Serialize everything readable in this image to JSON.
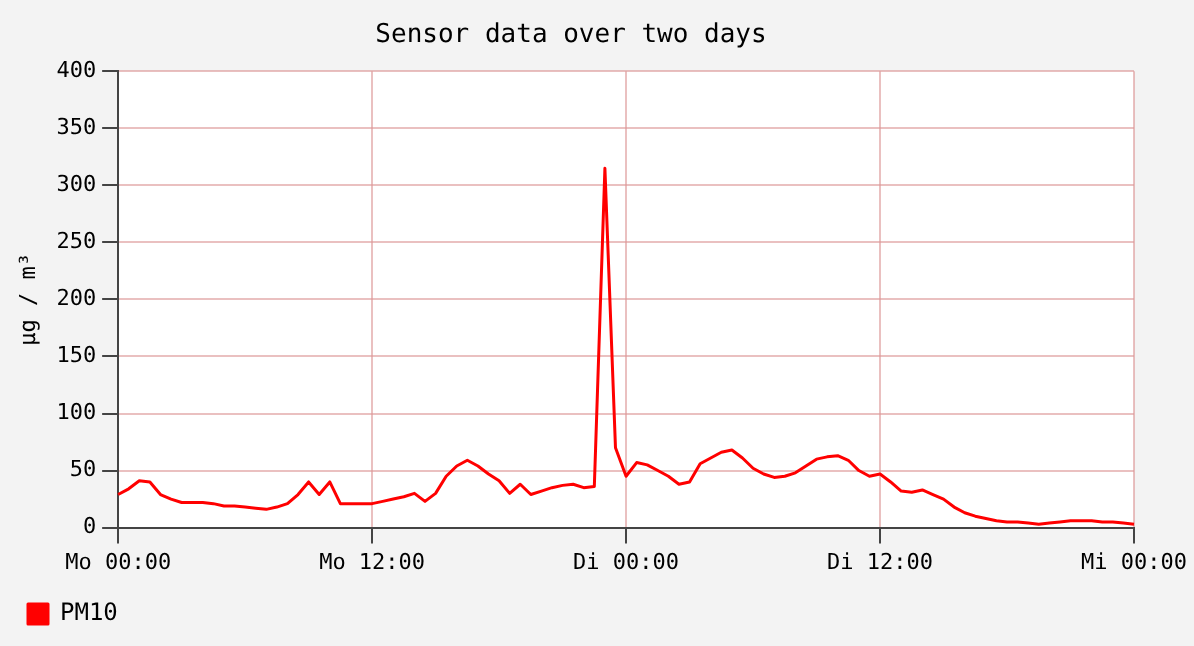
{
  "chart_data": {
    "type": "line",
    "title": "Sensor data over two days",
    "ylabel": "µg / m³",
    "categories": [
      "Mo 00:00",
      null,
      null,
      null,
      null,
      null,
      null,
      null,
      null,
      null,
      null,
      null,
      null,
      null,
      null,
      null,
      null,
      null,
      null,
      null,
      null,
      null,
      null,
      null,
      "Mo 12:00",
      null,
      null,
      null,
      null,
      null,
      null,
      null,
      null,
      null,
      null,
      null,
      null,
      null,
      null,
      null,
      null,
      null,
      null,
      null,
      null,
      null,
      null,
      null,
      "Di 00:00",
      null,
      null,
      null,
      null,
      null,
      null,
      null,
      null,
      null,
      null,
      null,
      null,
      null,
      null,
      null,
      null,
      null,
      null,
      null,
      null,
      null,
      null,
      null,
      "Di 12:00",
      null,
      null,
      null,
      null,
      null,
      null,
      null,
      null,
      null,
      null,
      null,
      null,
      null,
      null,
      null,
      null,
      null,
      null,
      null,
      null,
      null,
      null,
      null,
      "Mi 00:00"
    ],
    "series": [
      {
        "name": "PM10",
        "color": "#ff0000",
        "values": [
          29,
          34,
          41,
          40,
          29,
          25,
          22,
          22,
          22,
          21,
          19,
          19,
          18,
          17,
          16,
          18,
          21,
          29,
          40,
          29,
          40,
          21,
          21,
          21,
          21,
          23,
          25,
          27,
          30,
          23,
          30,
          45,
          54,
          59,
          54,
          47,
          41,
          30,
          38,
          29,
          32,
          35,
          37,
          38,
          35,
          36,
          315,
          70,
          45,
          57,
          55,
          50,
          45,
          38,
          40,
          56,
          61,
          66,
          68,
          61,
          52,
          47,
          44,
          45,
          48,
          54,
          60,
          62,
          63,
          59,
          50,
          45,
          47,
          40,
          32,
          31,
          33,
          29,
          25,
          18,
          13,
          10,
          8,
          6,
          5,
          5,
          4,
          3,
          4,
          5,
          6,
          6,
          6,
          5,
          5,
          4,
          3
        ]
      }
    ],
    "ylim": [
      0,
      400
    ],
    "yticks": [
      0,
      50,
      100,
      150,
      200,
      250,
      300,
      350,
      400
    ],
    "grid": true,
    "legend": "bottom left",
    "marker": "none",
    "line_style": "solid"
  }
}
